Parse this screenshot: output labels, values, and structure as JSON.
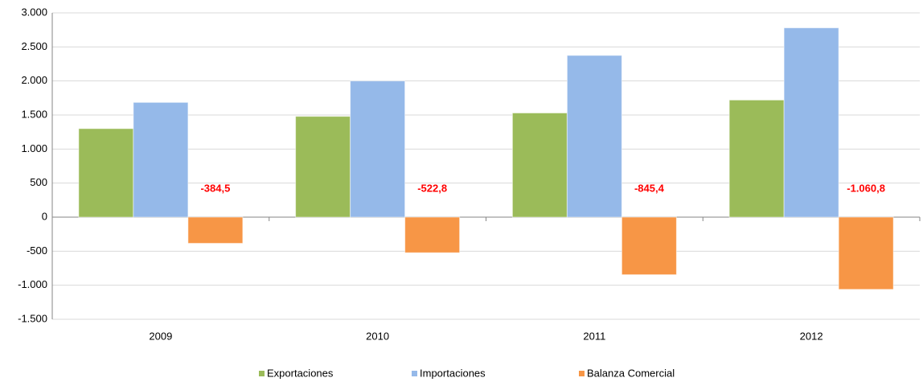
{
  "chart_data": {
    "type": "bar",
    "categories": [
      "2009",
      "2010",
      "2011",
      "2012"
    ],
    "series": [
      {
        "name": "Exportaciones",
        "color": "#9bbb59",
        "values": [
          1300,
          1480,
          1530,
          1720
        ]
      },
      {
        "name": "Importaciones",
        "color": "#95b9e9",
        "values": [
          1685,
          2000,
          2375,
          2780
        ]
      },
      {
        "name": "Balanza Comercial",
        "color": "#f79646",
        "values": [
          -384.5,
          -522.8,
          -845.4,
          -1060.8
        ],
        "value_labels": [
          "-384,5",
          "-522,8",
          "-845,4",
          "-1.060,8"
        ]
      }
    ],
    "ylim": [
      -1500,
      3000
    ],
    "yticks": [
      {
        "value": -1500,
        "label": "-1.500"
      },
      {
        "value": -1000,
        "label": "-1.000"
      },
      -500,
      0,
      500,
      {
        "value": 1000,
        "label": "1.000"
      },
      {
        "value": 1500,
        "label": "1.500"
      },
      {
        "value": 2000,
        "label": "2.000"
      },
      {
        "value": 2500,
        "label": "2.500"
      },
      {
        "value": 3000,
        "label": "3.000"
      }
    ],
    "grid": true,
    "legend": "bottom"
  }
}
